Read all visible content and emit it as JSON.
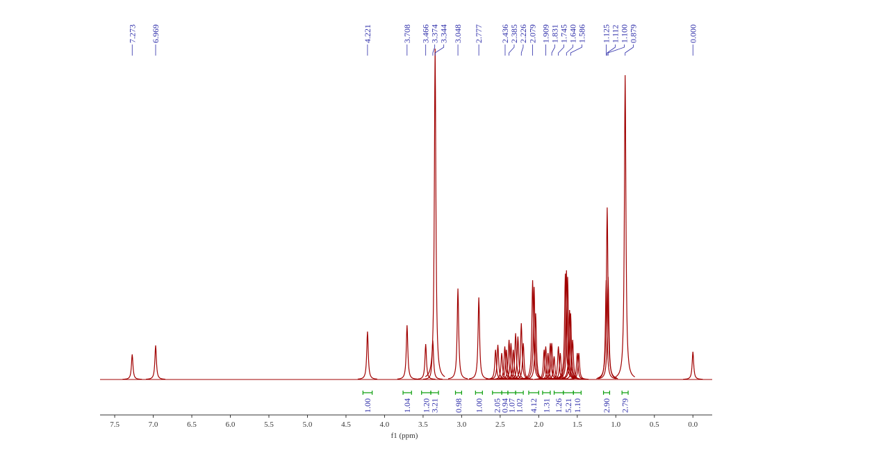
{
  "chart_data": {
    "type": "spectrum",
    "x_label": "f1 (ppm)",
    "color": "#a00000",
    "xlim": [
      7.69,
      -0.25
    ],
    "xticks": [
      {
        "value": 7.5,
        "label": "7.5"
      },
      {
        "value": 7,
        "label": "7.0"
      },
      {
        "value": 6.5,
        "label": "6.5"
      },
      {
        "value": 6,
        "label": "6.0"
      },
      {
        "value": 5.5,
        "label": "5.5"
      },
      {
        "value": 5,
        "label": "5.0"
      },
      {
        "value": 4.5,
        "label": "4.5"
      },
      {
        "value": 4,
        "label": "4.0"
      },
      {
        "value": 3.5,
        "label": "3.5"
      },
      {
        "value": 3,
        "label": "3.0"
      },
      {
        "value": 2.5,
        "label": "2.5"
      },
      {
        "value": 2,
        "label": "2.0"
      },
      {
        "value": 1.5,
        "label": "1.5"
      },
      {
        "value": 1,
        "label": "1.0"
      },
      {
        "value": 0.5,
        "label": "0.5"
      },
      {
        "value": 0,
        "label": "0.0"
      }
    ],
    "ylim": [
      0,
      100
    ],
    "peak_labels": [
      7.273,
      6.969,
      4.221,
      3.708,
      3.466,
      3.374,
      3.344,
      3.048,
      2.777,
      2.436,
      2.385,
      2.226,
      2.079,
      1.909,
      1.831,
      1.745,
      {
        "value": 1.64,
        "label": "1.640"
      },
      1.586,
      1.125,
      1.112,
      {
        "value": 1.1,
        "label": "1.100"
      },
      0.879,
      {
        "value": 0,
        "label": "0.000"
      }
    ],
    "peaks": {
      "x": [
        7.273,
        6.969,
        4.221,
        3.708,
        3.466,
        3.374,
        3.344,
        3.048,
        2.777,
        2.56,
        2.53,
        2.48,
        2.44,
        2.42,
        2.385,
        2.36,
        2.33,
        2.3,
        2.27,
        2.226,
        2.2,
        2.079,
        2.06,
        2.04,
        1.93,
        1.909,
        1.88,
        1.85,
        1.831,
        1.8,
        1.745,
        1.72,
        1.655,
        1.64,
        1.625,
        1.6,
        1.586,
        1.56,
        1.5,
        1.48,
        1.125,
        1.112,
        1.1,
        0.879,
        0
      ],
      "values": [
        7.6,
        10.3,
        14.5,
        16.4,
        10.7,
        11.8,
        100,
        27.5,
        24.8,
        9,
        10.5,
        8,
        10,
        9,
        12,
        11,
        9,
        14,
        13,
        17,
        11,
        30,
        28,
        20,
        9,
        10,
        8,
        11,
        11,
        7,
        10,
        8,
        32,
        33,
        31,
        21,
        20,
        12,
        8,
        8,
        30,
        52,
        31,
        92,
        8.4
      ]
    },
    "integrals": {
      "from": [
        4.28,
        3.76,
        3.52,
        3.4,
        3.08,
        2.82,
        2.6,
        2.48,
        2.4,
        2.3,
        2.13,
        1.95,
        1.8,
        1.68,
        1.55,
        1.16,
        0.92
      ],
      "to": [
        4.16,
        3.65,
        3.4,
        3.3,
        3.0,
        2.73,
        2.48,
        2.4,
        2.3,
        2.2,
        2.0,
        1.85,
        1.68,
        1.55,
        1.45,
        1.08,
        0.84
      ],
      "values": [
        1,
        1.04,
        1.2,
        3.21,
        0.98,
        1,
        2.05,
        0.94,
        1.07,
        1.02,
        4.12,
        1.31,
        1.26,
        5.21,
        1.1,
        2.9,
        2.79
      ],
      "value_labels": [
        "1.00",
        "1.04",
        "1.20",
        "3.21",
        "0.98",
        "1.00",
        "2.05",
        "0.94",
        "1.07",
        "1.02",
        "4.12",
        "1.31",
        "1.26",
        "5.21",
        "1.10",
        "2.90",
        "2.79"
      ]
    }
  }
}
